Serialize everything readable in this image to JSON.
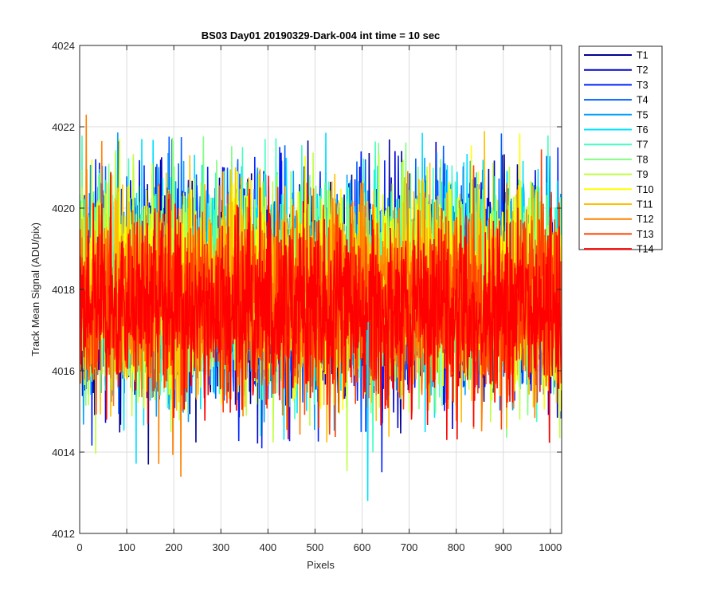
{
  "chart_data": {
    "type": "line",
    "title": "BS03 Day01 20190329-Dark-004 int time = 10 sec",
    "xlabel": "Pixels",
    "ylabel": "Track Mean Signal (ADU/pix)",
    "xlim": [
      0,
      1024
    ],
    "ylim": [
      4012,
      4024
    ],
    "xticks": [
      0,
      100,
      200,
      300,
      400,
      500,
      600,
      700,
      800,
      900,
      1000
    ],
    "yticks": [
      4012,
      4014,
      4016,
      4018,
      4020,
      4022,
      4024
    ],
    "grid": true,
    "legend_placement": "outside-right-top",
    "n_points": 1024,
    "noise_envelope": {
      "typical_low": 4015,
      "typical_high": 4021,
      "min_spike": {
        "x": 612,
        "y": 4012.8
      },
      "max_spike": {
        "x": 14,
        "y": 4022.3
      }
    },
    "series": [
      {
        "name": "T1",
        "color": "#00008f",
        "center": 4018.0,
        "spread": 1.5
      },
      {
        "name": "T2",
        "color": "#0000cf",
        "center": 4018.0,
        "spread": 1.5
      },
      {
        "name": "T3",
        "color": "#0020ff",
        "center": 4018.0,
        "spread": 1.5
      },
      {
        "name": "T4",
        "color": "#0060ff",
        "center": 4018.1,
        "spread": 1.5
      },
      {
        "name": "T5",
        "color": "#00a0ff",
        "center": 4018.1,
        "spread": 1.5
      },
      {
        "name": "T6",
        "color": "#00e0ff",
        "center": 4018.2,
        "spread": 1.55
      },
      {
        "name": "T7",
        "color": "#40ffbf",
        "center": 4018.2,
        "spread": 1.55
      },
      {
        "name": "T8",
        "color": "#80ff80",
        "center": 4018.1,
        "spread": 1.5
      },
      {
        "name": "T9",
        "color": "#bfff40",
        "center": 4018.0,
        "spread": 1.5
      },
      {
        "name": "T10",
        "color": "#ffff00",
        "center": 4018.0,
        "spread": 1.45
      },
      {
        "name": "T11",
        "color": "#ffbf00",
        "center": 4017.9,
        "spread": 1.45
      },
      {
        "name": "T12",
        "color": "#ff8000",
        "center": 4017.8,
        "spread": 1.4
      },
      {
        "name": "T13",
        "color": "#ff4000",
        "center": 4017.6,
        "spread": 1.4
      },
      {
        "name": "T14",
        "color": "#ff0000",
        "center": 4017.5,
        "spread": 1.35
      }
    ]
  }
}
